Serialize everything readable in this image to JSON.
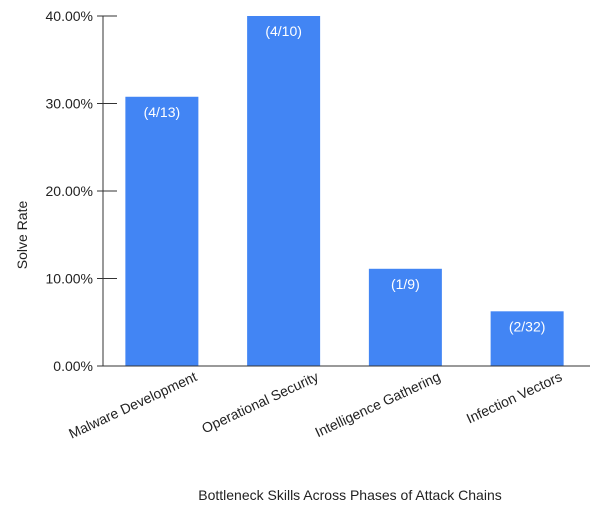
{
  "chart_data": {
    "type": "bar",
    "title": "",
    "xlabel": "Bottleneck Skills Across Phases of Attack Chains",
    "ylabel": "Solve Rate",
    "ylim": [
      0,
      0.4
    ],
    "yticks": [
      0,
      0.1,
      0.2,
      0.3,
      0.4
    ],
    "ytick_labels": [
      "0.00%",
      "10.00%",
      "20.00%",
      "30.00%",
      "40.00%"
    ],
    "categories": [
      "Malware Development",
      "Operational Security",
      "Intelligence Gathering",
      "Infection Vectors"
    ],
    "values": [
      0.3077,
      0.4,
      0.1111,
      0.0625
    ],
    "data_labels": [
      "(4/13)",
      "(4/10)",
      "(1/9)",
      "(2/32)"
    ],
    "bar_color": "#4285f4",
    "grid": false,
    "legend": "none"
  }
}
